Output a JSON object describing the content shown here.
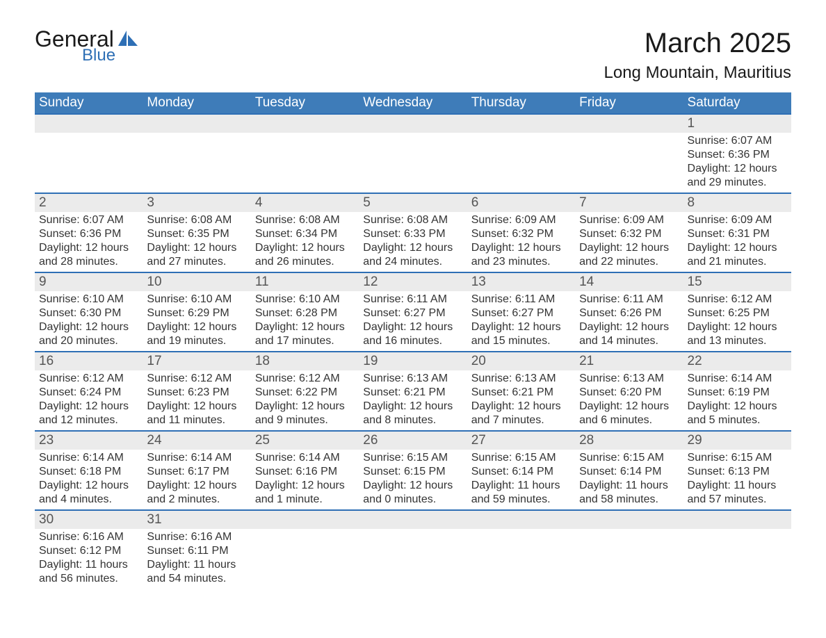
{
  "brand": {
    "main": "General",
    "sub": "Blue"
  },
  "title": {
    "month": "March 2025",
    "location": "Long Mountain, Mauritius"
  },
  "colors": {
    "header_bg": "#3e7cb9",
    "header_text": "#ffffff",
    "daynum_bg": "#ebebeb",
    "daynum_text": "#555555",
    "cell_text": "#333333",
    "rule": "#2e6fb5",
    "page_bg": "#ffffff",
    "logo_accent": "#2e6fb5"
  },
  "typography": {
    "title_month_pt": 40,
    "title_location_pt": 24,
    "dayheader_pt": 19,
    "daynum_pt": 19,
    "body_pt": 16
  },
  "day_headers": [
    "Sunday",
    "Monday",
    "Tuesday",
    "Wednesday",
    "Thursday",
    "Friday",
    "Saturday"
  ],
  "weeks": [
    [
      null,
      null,
      null,
      null,
      null,
      null,
      {
        "n": "1",
        "sunrise": "Sunrise: 6:07 AM",
        "sunset": "Sunset: 6:36 PM",
        "d1": "Daylight: 12 hours",
        "d2": "and 29 minutes."
      }
    ],
    [
      {
        "n": "2",
        "sunrise": "Sunrise: 6:07 AM",
        "sunset": "Sunset: 6:36 PM",
        "d1": "Daylight: 12 hours",
        "d2": "and 28 minutes."
      },
      {
        "n": "3",
        "sunrise": "Sunrise: 6:08 AM",
        "sunset": "Sunset: 6:35 PM",
        "d1": "Daylight: 12 hours",
        "d2": "and 27 minutes."
      },
      {
        "n": "4",
        "sunrise": "Sunrise: 6:08 AM",
        "sunset": "Sunset: 6:34 PM",
        "d1": "Daylight: 12 hours",
        "d2": "and 26 minutes."
      },
      {
        "n": "5",
        "sunrise": "Sunrise: 6:08 AM",
        "sunset": "Sunset: 6:33 PM",
        "d1": "Daylight: 12 hours",
        "d2": "and 24 minutes."
      },
      {
        "n": "6",
        "sunrise": "Sunrise: 6:09 AM",
        "sunset": "Sunset: 6:32 PM",
        "d1": "Daylight: 12 hours",
        "d2": "and 23 minutes."
      },
      {
        "n": "7",
        "sunrise": "Sunrise: 6:09 AM",
        "sunset": "Sunset: 6:32 PM",
        "d1": "Daylight: 12 hours",
        "d2": "and 22 minutes."
      },
      {
        "n": "8",
        "sunrise": "Sunrise: 6:09 AM",
        "sunset": "Sunset: 6:31 PM",
        "d1": "Daylight: 12 hours",
        "d2": "and 21 minutes."
      }
    ],
    [
      {
        "n": "9",
        "sunrise": "Sunrise: 6:10 AM",
        "sunset": "Sunset: 6:30 PM",
        "d1": "Daylight: 12 hours",
        "d2": "and 20 minutes."
      },
      {
        "n": "10",
        "sunrise": "Sunrise: 6:10 AM",
        "sunset": "Sunset: 6:29 PM",
        "d1": "Daylight: 12 hours",
        "d2": "and 19 minutes."
      },
      {
        "n": "11",
        "sunrise": "Sunrise: 6:10 AM",
        "sunset": "Sunset: 6:28 PM",
        "d1": "Daylight: 12 hours",
        "d2": "and 17 minutes."
      },
      {
        "n": "12",
        "sunrise": "Sunrise: 6:11 AM",
        "sunset": "Sunset: 6:27 PM",
        "d1": "Daylight: 12 hours",
        "d2": "and 16 minutes."
      },
      {
        "n": "13",
        "sunrise": "Sunrise: 6:11 AM",
        "sunset": "Sunset: 6:27 PM",
        "d1": "Daylight: 12 hours",
        "d2": "and 15 minutes."
      },
      {
        "n": "14",
        "sunrise": "Sunrise: 6:11 AM",
        "sunset": "Sunset: 6:26 PM",
        "d1": "Daylight: 12 hours",
        "d2": "and 14 minutes."
      },
      {
        "n": "15",
        "sunrise": "Sunrise: 6:12 AM",
        "sunset": "Sunset: 6:25 PM",
        "d1": "Daylight: 12 hours",
        "d2": "and 13 minutes."
      }
    ],
    [
      {
        "n": "16",
        "sunrise": "Sunrise: 6:12 AM",
        "sunset": "Sunset: 6:24 PM",
        "d1": "Daylight: 12 hours",
        "d2": "and 12 minutes."
      },
      {
        "n": "17",
        "sunrise": "Sunrise: 6:12 AM",
        "sunset": "Sunset: 6:23 PM",
        "d1": "Daylight: 12 hours",
        "d2": "and 11 minutes."
      },
      {
        "n": "18",
        "sunrise": "Sunrise: 6:12 AM",
        "sunset": "Sunset: 6:22 PM",
        "d1": "Daylight: 12 hours",
        "d2": "and 9 minutes."
      },
      {
        "n": "19",
        "sunrise": "Sunrise: 6:13 AM",
        "sunset": "Sunset: 6:21 PM",
        "d1": "Daylight: 12 hours",
        "d2": "and 8 minutes."
      },
      {
        "n": "20",
        "sunrise": "Sunrise: 6:13 AM",
        "sunset": "Sunset: 6:21 PM",
        "d1": "Daylight: 12 hours",
        "d2": "and 7 minutes."
      },
      {
        "n": "21",
        "sunrise": "Sunrise: 6:13 AM",
        "sunset": "Sunset: 6:20 PM",
        "d1": "Daylight: 12 hours",
        "d2": "and 6 minutes."
      },
      {
        "n": "22",
        "sunrise": "Sunrise: 6:14 AM",
        "sunset": "Sunset: 6:19 PM",
        "d1": "Daylight: 12 hours",
        "d2": "and 5 minutes."
      }
    ],
    [
      {
        "n": "23",
        "sunrise": "Sunrise: 6:14 AM",
        "sunset": "Sunset: 6:18 PM",
        "d1": "Daylight: 12 hours",
        "d2": "and 4 minutes."
      },
      {
        "n": "24",
        "sunrise": "Sunrise: 6:14 AM",
        "sunset": "Sunset: 6:17 PM",
        "d1": "Daylight: 12 hours",
        "d2": "and 2 minutes."
      },
      {
        "n": "25",
        "sunrise": "Sunrise: 6:14 AM",
        "sunset": "Sunset: 6:16 PM",
        "d1": "Daylight: 12 hours",
        "d2": "and 1 minute."
      },
      {
        "n": "26",
        "sunrise": "Sunrise: 6:15 AM",
        "sunset": "Sunset: 6:15 PM",
        "d1": "Daylight: 12 hours",
        "d2": "and 0 minutes."
      },
      {
        "n": "27",
        "sunrise": "Sunrise: 6:15 AM",
        "sunset": "Sunset: 6:14 PM",
        "d1": "Daylight: 11 hours",
        "d2": "and 59 minutes."
      },
      {
        "n": "28",
        "sunrise": "Sunrise: 6:15 AM",
        "sunset": "Sunset: 6:14 PM",
        "d1": "Daylight: 11 hours",
        "d2": "and 58 minutes."
      },
      {
        "n": "29",
        "sunrise": "Sunrise: 6:15 AM",
        "sunset": "Sunset: 6:13 PM",
        "d1": "Daylight: 11 hours",
        "d2": "and 57 minutes."
      }
    ],
    [
      {
        "n": "30",
        "sunrise": "Sunrise: 6:16 AM",
        "sunset": "Sunset: 6:12 PM",
        "d1": "Daylight: 11 hours",
        "d2": "and 56 minutes."
      },
      {
        "n": "31",
        "sunrise": "Sunrise: 6:16 AM",
        "sunset": "Sunset: 6:11 PM",
        "d1": "Daylight: 11 hours",
        "d2": "and 54 minutes."
      },
      null,
      null,
      null,
      null,
      null
    ]
  ]
}
